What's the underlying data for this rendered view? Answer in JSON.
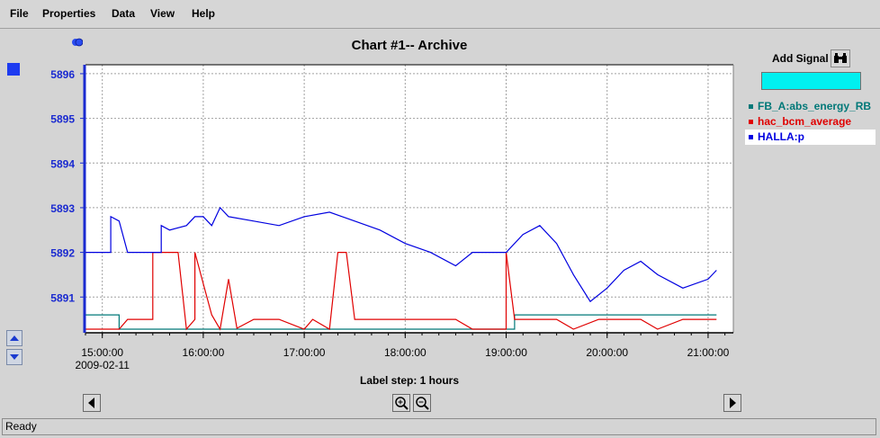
{
  "menu": {
    "items": [
      "File",
      "Properties",
      "Data",
      "View",
      "Help"
    ]
  },
  "add_signal": {
    "label": "Add Signal",
    "icon": "binoculars-icon",
    "input_value": ""
  },
  "label_step": "Label step: 1 hours",
  "status": "Ready",
  "chart_data": {
    "type": "line",
    "title": "Chart #1-- Archive",
    "y_ticks": [
      "5891",
      "5892",
      "5893",
      "5894",
      "5895",
      "5896"
    ],
    "ylim": [
      5890.2,
      5896.2
    ],
    "x_ticks": [
      "15:00:00",
      "16:00:00",
      "17:00:00",
      "18:00:00",
      "19:00:00",
      "20:00:00",
      "21:00:00"
    ],
    "x_date_label": "2009-02-11",
    "xlim": [
      "14:50:00",
      "21:15:00"
    ],
    "grid": true,
    "legend_position": "right",
    "series": [
      {
        "name": "FB_A:abs_energy_RB",
        "color": "#007878",
        "points": [
          [
            "14:50:00",
            5890.6
          ],
          [
            "15:10:00",
            5890.6
          ],
          [
            "15:10:00",
            5890.28
          ],
          [
            "19:05:00",
            5890.28
          ],
          [
            "19:05:00",
            5890.6
          ],
          [
            "21:05:00",
            5890.6
          ]
        ]
      },
      {
        "name": "hac_bcm_average",
        "color": "#e00000",
        "points": [
          [
            "14:50:00",
            5890.28
          ],
          [
            "15:10:00",
            5890.28
          ],
          [
            "15:15:00",
            5890.5
          ],
          [
            "15:30:00",
            5890.5
          ],
          [
            "15:30:00",
            5892.0
          ],
          [
            "15:45:00",
            5892.0
          ],
          [
            "15:50:00",
            5890.28
          ],
          [
            "15:55:00",
            5890.5
          ],
          [
            "15:55:00",
            5892.0
          ],
          [
            "16:00:00",
            5891.3
          ],
          [
            "16:05:00",
            5890.6
          ],
          [
            "16:10:00",
            5890.28
          ],
          [
            "16:15:00",
            5891.4
          ],
          [
            "16:20:00",
            5890.3
          ],
          [
            "16:30:00",
            5890.5
          ],
          [
            "16:45:00",
            5890.5
          ],
          [
            "17:00:00",
            5890.28
          ],
          [
            "17:05:00",
            5890.5
          ],
          [
            "17:15:00",
            5890.28
          ],
          [
            "17:20:00",
            5892.0
          ],
          [
            "17:25:00",
            5892.0
          ],
          [
            "17:30:00",
            5890.5
          ],
          [
            "18:30:00",
            5890.5
          ],
          [
            "18:40:00",
            5890.28
          ],
          [
            "19:00:00",
            5890.28
          ],
          [
            "19:00:00",
            5892.0
          ],
          [
            "19:05:00",
            5890.5
          ],
          [
            "19:30:00",
            5890.5
          ],
          [
            "19:40:00",
            5890.28
          ],
          [
            "19:55:00",
            5890.5
          ],
          [
            "20:20:00",
            5890.5
          ],
          [
            "20:30:00",
            5890.28
          ],
          [
            "20:45:00",
            5890.5
          ],
          [
            "21:05:00",
            5890.5
          ]
        ]
      },
      {
        "name": "HALLA:p",
        "color": "#0000e0",
        "points": [
          [
            "14:50:00",
            5892.0
          ],
          [
            "15:05:00",
            5892.0
          ],
          [
            "15:05:00",
            5892.8
          ],
          [
            "15:10:00",
            5892.7
          ],
          [
            "15:15:00",
            5892.0
          ],
          [
            "15:35:00",
            5892.0
          ],
          [
            "15:35:00",
            5892.6
          ],
          [
            "15:40:00",
            5892.5
          ],
          [
            "15:50:00",
            5892.6
          ],
          [
            "15:55:00",
            5892.8
          ],
          [
            "16:00:00",
            5892.8
          ],
          [
            "16:05:00",
            5892.6
          ],
          [
            "16:10:00",
            5893.0
          ],
          [
            "16:15:00",
            5892.8
          ],
          [
            "16:30:00",
            5892.7
          ],
          [
            "16:45:00",
            5892.6
          ],
          [
            "17:00:00",
            5892.8
          ],
          [
            "17:15:00",
            5892.9
          ],
          [
            "17:30:00",
            5892.7
          ],
          [
            "17:45:00",
            5892.5
          ],
          [
            "18:00:00",
            5892.2
          ],
          [
            "18:15:00",
            5892.0
          ],
          [
            "18:30:00",
            5891.7
          ],
          [
            "18:40:00",
            5892.0
          ],
          [
            "19:00:00",
            5892.0
          ],
          [
            "19:10:00",
            5892.4
          ],
          [
            "19:20:00",
            5892.6
          ],
          [
            "19:30:00",
            5892.2
          ],
          [
            "19:40:00",
            5891.5
          ],
          [
            "19:50:00",
            5890.9
          ],
          [
            "20:00:00",
            5891.2
          ],
          [
            "20:10:00",
            5891.6
          ],
          [
            "20:20:00",
            5891.8
          ],
          [
            "20:30:00",
            5891.5
          ],
          [
            "20:45:00",
            5891.2
          ],
          [
            "21:00:00",
            5891.4
          ],
          [
            "21:05:00",
            5891.6
          ]
        ]
      }
    ]
  }
}
